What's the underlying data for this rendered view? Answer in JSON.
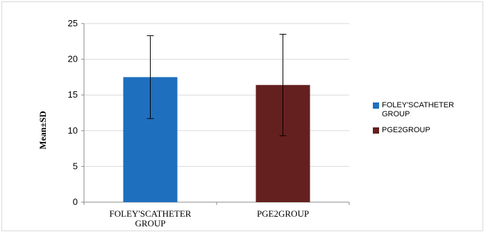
{
  "chart_data": {
    "type": "bar",
    "categories": [
      "FOLEY'SCATHETER GROUP",
      "PGE2GROUP"
    ],
    "category_lines": [
      [
        "FOLEY'SCATHETER",
        "GROUP"
      ],
      [
        "PGE2GROUP"
      ]
    ],
    "values": [
      17.5,
      16.4
    ],
    "error": [
      5.8,
      7.1
    ],
    "colors": [
      "#1f6fbf",
      "#64201f"
    ],
    "ylabel": "Mean±SD",
    "xlabel": "",
    "ylim": [
      0,
      25
    ],
    "yticks": [
      0,
      5,
      10,
      15,
      20,
      25
    ],
    "grid": true,
    "legend_position": "right",
    "legend": [
      {
        "label_lines": [
          "FOLEY'SCATHETER",
          "GROUP"
        ],
        "color": "#1f6fbf"
      },
      {
        "label_lines": [
          "PGE2GROUP"
        ],
        "color": "#64201f"
      }
    ]
  }
}
